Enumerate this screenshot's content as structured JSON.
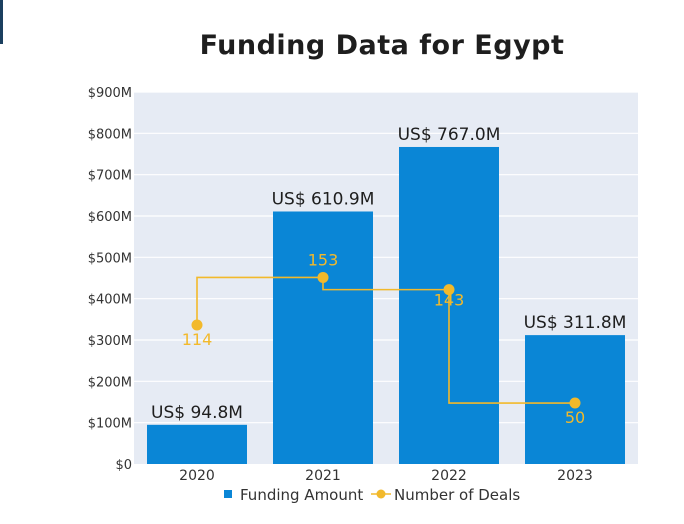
{
  "chart_data": {
    "type": "bar",
    "title": "Funding Data for Egypt",
    "categories": [
      "2020",
      "2021",
      "2022",
      "2023"
    ],
    "series": [
      {
        "name": "Funding Amount",
        "kind": "bar",
        "unit": "$M",
        "values": [
          94.8,
          610.9,
          767.0,
          311.8
        ],
        "labels": [
          "US$ 94.8M",
          "US$ 610.9M",
          "US$ 767.0M",
          "US$ 311.8M"
        ],
        "color": "#0a86d6"
      },
      {
        "name": "Number of Deals",
        "kind": "line",
        "values": [
          114,
          153,
          143,
          50
        ],
        "labels": [
          "114",
          "153",
          "143",
          "50"
        ],
        "color": "#f2b92b"
      }
    ],
    "y_ticks": [
      {
        "value": 0,
        "label": "$0"
      },
      {
        "value": 100,
        "label": "$100M"
      },
      {
        "value": 200,
        "label": "$200M"
      },
      {
        "value": 300,
        "label": "$300M"
      },
      {
        "value": 400,
        "label": "$400M"
      },
      {
        "value": 500,
        "label": "$500M"
      },
      {
        "value": 600,
        "label": "$600M"
      },
      {
        "value": 700,
        "label": "$700M"
      },
      {
        "value": 800,
        "label": "$800M"
      },
      {
        "value": 900,
        "label": "$900M"
      }
    ],
    "ylim": [
      0,
      900
    ],
    "xlabel": "",
    "ylabel": "",
    "grid": true,
    "legend_position": "bottom-center",
    "plot_background": "#e6ebf4",
    "gridline_color": "#ffffff"
  }
}
